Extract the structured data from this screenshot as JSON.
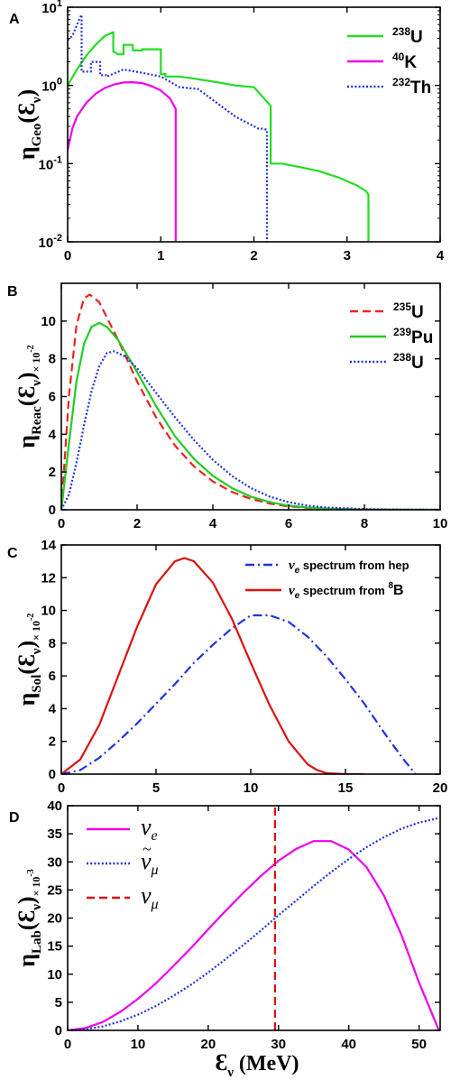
{
  "figure": {
    "xlabel_main": "Ɛ",
    "xlabel_sub": "ν",
    "xlabel_unit": " (MeV)"
  },
  "chart_data": [
    {
      "id": "A",
      "panel_label": "A",
      "type": "line",
      "yscale": "log",
      "xlim": [
        0,
        4
      ],
      "ylim": [
        0.01,
        10
      ],
      "xticks": [
        0,
        1,
        2,
        3,
        4
      ],
      "xtick_labels": [
        "0",
        "1",
        "2",
        "3",
        "4"
      ],
      "ytick_labels": [
        {
          "value": 0.01,
          "base": "10",
          "exp": "-2"
        },
        {
          "value": 0.1,
          "base": "10",
          "exp": "-1"
        },
        {
          "value": 1,
          "base": "10",
          "exp": "0"
        },
        {
          "value": 10,
          "base": "10",
          "exp": "1"
        }
      ],
      "ylabel": {
        "main": "η",
        "sub": "Geo",
        "arg": "(Ɛ",
        "argsub": "ν",
        "close": ")",
        "scale": ""
      },
      "legend_placement": "top-right",
      "series": [
        {
          "name": "U",
          "mass": "238",
          "color": "#22dd22",
          "style": "solid",
          "x": [
            0,
            0.1,
            0.2,
            0.3,
            0.4,
            0.49,
            0.49,
            0.52,
            0.54,
            0.6,
            0.6,
            0.7,
            0.7,
            0.8,
            0.8,
            1.0,
            1.0,
            1.05,
            1.05,
            1.2,
            1.4,
            1.6,
            1.8,
            2.0,
            2.18,
            2.18,
            2.3,
            2.5,
            2.7,
            2.9,
            3.1,
            3.2,
            3.23,
            3.23
          ],
          "y": [
            1.0,
            1.6,
            2.4,
            3.3,
            4.3,
            4.8,
            2.7,
            2.6,
            2.5,
            2.5,
            3.3,
            3.3,
            2.8,
            2.8,
            2.9,
            2.9,
            1.4,
            1.4,
            1.3,
            1.3,
            1.2,
            1.1,
            1.0,
            0.95,
            0.55,
            0.1,
            0.1,
            0.09,
            0.08,
            0.067,
            0.053,
            0.045,
            0.04,
            0.01
          ]
        },
        {
          "name": "K",
          "mass": "40",
          "color": "#ee00ee",
          "style": "solid",
          "x": [
            0,
            0.05,
            0.1,
            0.2,
            0.3,
            0.4,
            0.5,
            0.6,
            0.7,
            0.8,
            0.9,
            1.0,
            1.1,
            1.16,
            1.16
          ],
          "y": [
            0.15,
            0.28,
            0.4,
            0.6,
            0.78,
            0.93,
            1.03,
            1.09,
            1.1,
            1.07,
            0.98,
            0.86,
            0.68,
            0.5,
            0.01
          ]
        },
        {
          "name": "Th",
          "mass": "232",
          "color": "#2233dd",
          "style": "dotted",
          "x": [
            0,
            0.05,
            0.08,
            0.12,
            0.15,
            0.15,
            0.25,
            0.25,
            0.35,
            0.35,
            0.42,
            0.42,
            0.6,
            0.8,
            1.0,
            1.2,
            1.4,
            1.6,
            1.8,
            2.0,
            2.05,
            2.1,
            2.14,
            2.14
          ],
          "y": [
            3.8,
            4.3,
            5.2,
            6.8,
            8.0,
            1.5,
            1.5,
            2.0,
            2.0,
            1.35,
            1.35,
            1.3,
            1.6,
            1.45,
            1.3,
            0.95,
            0.9,
            0.6,
            0.4,
            0.3,
            0.28,
            0.28,
            0.27,
            0.01
          ]
        }
      ]
    },
    {
      "id": "B",
      "panel_label": "B",
      "type": "line",
      "xlim": [
        0,
        10
      ],
      "ylim": [
        0,
        12
      ],
      "xticks": [
        0,
        2,
        4,
        6,
        8,
        10
      ],
      "xtick_labels": [
        "0",
        "2",
        "4",
        "6",
        "8",
        "10"
      ],
      "yticks": [
        0,
        2,
        4,
        6,
        8,
        10
      ],
      "ytick_labels": [
        "0",
        "2",
        "4",
        "6",
        "8",
        "10"
      ],
      "ylabel": {
        "main": "η",
        "sub": "Reac",
        "arg": "(Ɛ",
        "argsub": "ν",
        "close": ")",
        "scale": "× 10",
        "scale_exp": "-2"
      },
      "legend_placement": "top-right",
      "series": [
        {
          "name": "U",
          "mass": "235",
          "color": "#ee2222",
          "style": "dashed",
          "x": [
            0,
            0.2,
            0.4,
            0.6,
            0.75,
            1.0,
            1.5,
            2.0,
            2.5,
            3.0,
            3.5,
            4.0,
            4.5,
            5.0,
            5.5,
            6.0,
            6.5,
            7.0,
            8.0,
            10.0
          ],
          "y": [
            0,
            6.0,
            9.8,
            11.2,
            11.4,
            11.0,
            9.0,
            6.8,
            4.9,
            3.4,
            2.3,
            1.5,
            0.95,
            0.58,
            0.33,
            0.18,
            0.1,
            0.05,
            0.01,
            0
          ]
        },
        {
          "name": "Pu",
          "mass": "239",
          "color": "#22cc22",
          "style": "solid",
          "x": [
            0,
            0.2,
            0.4,
            0.6,
            0.8,
            1.0,
            1.2,
            1.5,
            2.0,
            2.5,
            3.0,
            3.5,
            4.0,
            4.5,
            5.0,
            5.5,
            6.0,
            6.5,
            7.0,
            8.0,
            10.0
          ],
          "y": [
            0,
            3.5,
            6.8,
            8.8,
            9.7,
            9.9,
            9.7,
            9.0,
            7.3,
            5.5,
            3.9,
            2.7,
            1.8,
            1.15,
            0.7,
            0.4,
            0.22,
            0.12,
            0.06,
            0.015,
            0
          ]
        },
        {
          "name": "U",
          "mass": "238",
          "color": "#2233dd",
          "style": "dotted",
          "x": [
            0,
            0.2,
            0.4,
            0.6,
            0.8,
            1.0,
            1.2,
            1.4,
            1.7,
            2.0,
            2.5,
            3.0,
            3.5,
            4.0,
            4.5,
            5.0,
            5.5,
            6.0,
            6.5,
            7.0,
            8.0,
            9.0,
            10.0
          ],
          "y": [
            0,
            0.8,
            2.5,
            4.5,
            6.3,
            7.6,
            8.3,
            8.4,
            8.1,
            7.5,
            6.2,
            4.9,
            3.7,
            2.65,
            1.8,
            1.15,
            0.7,
            0.4,
            0.22,
            0.12,
            0.04,
            0.01,
            0
          ]
        }
      ]
    },
    {
      "id": "C",
      "panel_label": "C",
      "type": "line",
      "xlim": [
        0,
        20
      ],
      "ylim": [
        0,
        14
      ],
      "xticks": [
        0,
        5,
        10,
        15,
        20
      ],
      "xtick_labels": [
        "0",
        "5",
        "10",
        "15",
        "20"
      ],
      "yticks": [
        0,
        2,
        4,
        6,
        8,
        10,
        12,
        14
      ],
      "ytick_labels": [
        "0",
        "2",
        "4",
        "6",
        "8",
        "10",
        "12",
        "14"
      ],
      "ylabel": {
        "main": "η",
        "sub": "Sol",
        "arg": "(Ɛ",
        "argsub": "ν",
        "close": ")",
        "scale": "× 10",
        "scale_exp": "-2"
      },
      "legend_placement": "top-right",
      "series": [
        {
          "name": "spectrum from hep",
          "nu": "ν",
          "nusub": "e",
          "suffix": "",
          "color": "#2233dd",
          "style": "dashdot",
          "x": [
            0,
            1,
            2,
            3,
            4,
            5,
            6,
            7,
            8,
            9,
            10,
            11,
            12,
            13,
            14,
            15,
            16,
            17,
            18,
            18.7
          ],
          "y": [
            0,
            0.25,
            1.0,
            2.0,
            3.1,
            4.3,
            5.5,
            6.8,
            7.9,
            8.9,
            9.7,
            9.7,
            9.3,
            8.4,
            7.2,
            5.8,
            4.3,
            2.6,
            1.0,
            0
          ]
        },
        {
          "name": "spectrum from ",
          "nu": "ν",
          "nusub": "e",
          "suffix": "B",
          "suffix_mass": "8",
          "color": "#dd1111",
          "style": "solid",
          "x": [
            0,
            1,
            2,
            3,
            4,
            5,
            6,
            6.5,
            7,
            8,
            9,
            10,
            11,
            12,
            13,
            13.5,
            14,
            15,
            16
          ],
          "y": [
            0,
            0.9,
            3.0,
            6.0,
            9.0,
            11.6,
            13.0,
            13.2,
            13.0,
            11.7,
            9.5,
            6.8,
            4.2,
            2.0,
            0.6,
            0.25,
            0.06,
            0,
            0
          ]
        }
      ]
    },
    {
      "id": "D",
      "panel_label": "D",
      "type": "line",
      "xlim": [
        0,
        53
      ],
      "ylim": [
        0,
        40
      ],
      "xticks": [
        0,
        10,
        20,
        30,
        40,
        50
      ],
      "xtick_labels": [
        "0",
        "10",
        "20",
        "30",
        "40",
        "50"
      ],
      "yticks": [
        0,
        5,
        10,
        15,
        20,
        25,
        30,
        35,
        40
      ],
      "ytick_labels": [
        "0",
        "5",
        "10",
        "15",
        "20",
        "25",
        "30",
        "35",
        "40"
      ],
      "ylabel": {
        "main": "η",
        "sub": "Lab",
        "arg": "(Ɛ",
        "argsub": "ν",
        "close": ")",
        "scale": "× 10",
        "scale_exp": "-3"
      },
      "legend_placement": "top-left",
      "series": [
        {
          "name": "ν",
          "nusub": "e",
          "tilde": false,
          "color": "#ee00ee",
          "style": "solid",
          "x": [
            0,
            2.5,
            5,
            7.5,
            10,
            12.5,
            15,
            17.5,
            20,
            22.5,
            25,
            27.5,
            30,
            32.5,
            35,
            37.5,
            40,
            42.5,
            45,
            47.5,
            50,
            52.5,
            52.8
          ],
          "y": [
            0,
            0.4,
            1.5,
            3.3,
            5.6,
            8.3,
            11.4,
            14.6,
            18.0,
            21.3,
            24.5,
            27.5,
            30.2,
            32.3,
            33.7,
            33.7,
            32.2,
            29.1,
            24.0,
            17.0,
            8.5,
            1.0,
            0
          ]
        },
        {
          "name": "ν",
          "nusub": "μ",
          "tilde": true,
          "color": "#2233dd",
          "style": "dotted",
          "x": [
            0,
            2.5,
            5,
            7.5,
            10,
            12.5,
            15,
            17.5,
            20,
            22.5,
            25,
            27.5,
            30,
            32.5,
            35,
            37.5,
            40,
            42.5,
            45,
            47.5,
            50,
            52.8
          ],
          "y": [
            0,
            0.2,
            0.7,
            1.6,
            2.8,
            4.3,
            6.1,
            8.1,
            10.3,
            12.7,
            15.2,
            17.8,
            20.5,
            23.1,
            25.7,
            28.2,
            30.5,
            32.6,
            34.4,
            35.9,
            37.0,
            37.8
          ]
        },
        {
          "name": "ν",
          "nusub": "μ",
          "tilde": false,
          "color": "#dd1111",
          "style": "dashed",
          "x": [
            29.5,
            29.5
          ],
          "y": [
            0,
            40
          ]
        }
      ]
    }
  ]
}
